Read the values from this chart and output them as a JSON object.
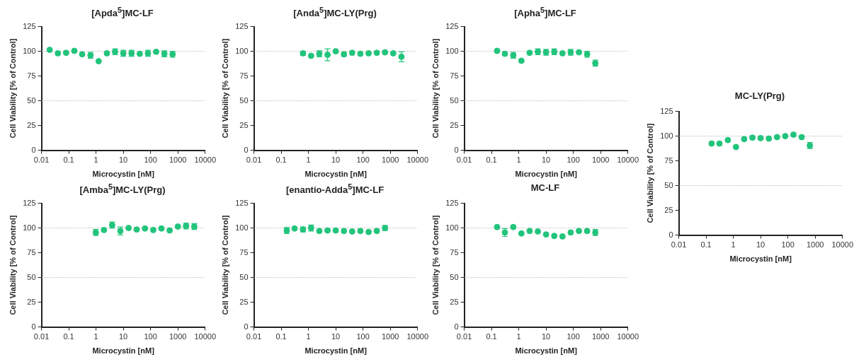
{
  "chart_data": [
    {
      "type": "scatter",
      "title": "[Apda$^{5}$]MC-LF",
      "xlabel": "Microcystin [nM]",
      "ylabel": "Cell Viability [% of Control]",
      "color": "#22c47c",
      "marker": "circle",
      "log": "x",
      "xlim": [
        0.01,
        10000
      ],
      "xticks": [
        0.01,
        0.1,
        1,
        10,
        100,
        1000,
        10000
      ],
      "ylim": [
        0,
        125
      ],
      "yticks": [
        0,
        25,
        50,
        75,
        100,
        125
      ],
      "ref_lines": [
        {
          "axis": "y",
          "value": 50,
          "line_style": "dotted",
          "color": "#999999"
        },
        {
          "axis": "y",
          "value": 100,
          "line_style": "dotted",
          "color": "#999999"
        }
      ],
      "x": [
        0.02,
        0.04,
        0.08,
        0.16,
        0.31,
        0.63,
        1.25,
        2.5,
        5,
        10,
        20,
        40,
        80,
        160,
        320,
        640
      ],
      "values": [
        101.5,
        98,
        98.5,
        100.5,
        97,
        96,
        90,
        98,
        99.5,
        98,
        98,
        97.5,
        98,
        99.5,
        97.5,
        97
      ],
      "errors": [
        null,
        null,
        null,
        null,
        null,
        3,
        null,
        null,
        3,
        3,
        3,
        null,
        3,
        null,
        3,
        3
      ]
    },
    {
      "type": "scatter",
      "title": "[Anda$^{5}$]MC-LY(Prg)",
      "xlabel": "Microcystin [nM]",
      "ylabel": "Cell Viability [% of Control]",
      "color": "#22c47c",
      "marker": "circle",
      "log": "x",
      "xlim": [
        0.01,
        10000
      ],
      "xticks": [
        0.01,
        0.1,
        1,
        10,
        100,
        1000,
        10000
      ],
      "ylim": [
        0,
        125
      ],
      "yticks": [
        0,
        25,
        50,
        75,
        100,
        125
      ],
      "ref_lines": [
        {
          "axis": "y",
          "value": 50,
          "line_style": "dotted",
          "color": "#999999"
        },
        {
          "axis": "y",
          "value": 100,
          "line_style": "dotted",
          "color": "#999999"
        }
      ],
      "x": [
        0.63,
        1.25,
        2.5,
        5,
        10,
        20,
        40,
        80,
        160,
        320,
        640,
        1280,
        2560
      ],
      "values": [
        98,
        95.5,
        97.5,
        96.5,
        100,
        97,
        98.5,
        97.5,
        98,
        98.5,
        99,
        98,
        94.5
      ],
      "errors": [
        2,
        null,
        3,
        6,
        null,
        2,
        null,
        null,
        null,
        null,
        null,
        null,
        5
      ]
    },
    {
      "type": "scatter",
      "title": "[Apha$^{5}$]MC-LF",
      "xlabel": "Microcystin [nM]",
      "ylabel": "Cell Viability [% of Control]",
      "color": "#22c47c",
      "marker": "circle",
      "log": "x",
      "xlim": [
        0.01,
        10000
      ],
      "xticks": [
        0.01,
        0.1,
        1,
        10,
        100,
        1000,
        10000
      ],
      "ylim": [
        0,
        125
      ],
      "yticks": [
        0,
        25,
        50,
        75,
        100,
        125
      ],
      "ref_lines": [
        {
          "axis": "y",
          "value": 50,
          "line_style": "dotted",
          "color": "#999999"
        },
        {
          "axis": "y",
          "value": 100,
          "line_style": "dotted",
          "color": "#999999"
        }
      ],
      "x": [
        0.16,
        0.31,
        0.63,
        1.25,
        2.5,
        5,
        10,
        20,
        40,
        80,
        160,
        320,
        640
      ],
      "values": [
        100.5,
        97.5,
        96,
        90.5,
        98.5,
        99.5,
        99,
        99.5,
        98,
        99,
        99,
        97,
        88
      ],
      "errors": [
        null,
        null,
        3,
        null,
        null,
        3,
        3,
        3,
        null,
        3,
        null,
        3,
        3
      ]
    },
    {
      "type": "scatter",
      "title": "MC-LY(Prg)",
      "xlabel": "Microcystin [nM]",
      "ylabel": "Cell Viability [% of Control]",
      "color": "#22c47c",
      "marker": "circle",
      "log": "x",
      "xlim": [
        0.01,
        10000
      ],
      "xticks": [
        0.01,
        0.1,
        1,
        10,
        100,
        1000,
        10000
      ],
      "ylim": [
        0,
        125
      ],
      "yticks": [
        0,
        25,
        50,
        75,
        100,
        125
      ],
      "ref_lines": [
        {
          "axis": "y",
          "value": 50,
          "line_style": "dotted",
          "color": "#999999"
        },
        {
          "axis": "y",
          "value": 100,
          "line_style": "dotted",
          "color": "#999999"
        }
      ],
      "x": [
        0.16,
        0.31,
        0.63,
        1.25,
        2.5,
        5,
        10,
        20,
        40,
        80,
        160,
        320,
        640
      ],
      "values": [
        92.5,
        92.5,
        96,
        89,
        97,
        98.5,
        98,
        97.5,
        99,
        100,
        101.5,
        99,
        90.5
      ],
      "errors": [
        null,
        null,
        null,
        null,
        null,
        null,
        null,
        null,
        null,
        null,
        null,
        null,
        3
      ]
    },
    {
      "type": "scatter",
      "title": "[Amba$^{5}$]MC-LY(Prg)",
      "xlabel": "Microcystin [nM]",
      "ylabel": "Cell Viability [% of Control]",
      "color": "#22c47c",
      "marker": "circle",
      "log": "x",
      "xlim": [
        0.01,
        10000
      ],
      "xticks": [
        0.01,
        0.1,
        1,
        10,
        100,
        1000,
        10000
      ],
      "ylim": [
        0,
        125
      ],
      "yticks": [
        0,
        25,
        50,
        75,
        100,
        125
      ],
      "ref_lines": [
        {
          "axis": "y",
          "value": 50,
          "line_style": "dotted",
          "color": "#999999"
        },
        {
          "axis": "y",
          "value": 100,
          "line_style": "dotted",
          "color": "#999999"
        }
      ],
      "x": [
        0.98,
        1.95,
        3.9,
        7.8,
        15.6,
        31,
        62.5,
        125,
        250,
        500,
        1000,
        2000,
        4000
      ],
      "values": [
        95.5,
        98,
        103,
        97,
        100,
        98.5,
        99.5,
        98,
        99.5,
        97.5,
        101.5,
        102,
        101.5
      ],
      "errors": [
        3,
        null,
        3,
        4,
        null,
        null,
        null,
        null,
        null,
        null,
        null,
        3,
        3
      ]
    },
    {
      "type": "scatter",
      "title": "[enantio-Adda$^{5}$]MC-LF",
      "xlabel": "Microcystin [nM]",
      "ylabel": "Cell Viability [% of Control]",
      "color": "#22c47c",
      "marker": "circle",
      "log": "x",
      "xlim": [
        0.01,
        10000
      ],
      "xticks": [
        0.01,
        0.1,
        1,
        10,
        100,
        1000,
        10000
      ],
      "ylim": [
        0,
        125
      ],
      "yticks": [
        0,
        25,
        50,
        75,
        100,
        125
      ],
      "ref_lines": [
        {
          "axis": "y",
          "value": 50,
          "line_style": "dotted",
          "color": "#999999"
        },
        {
          "axis": "y",
          "value": 100,
          "line_style": "dotted",
          "color": "#999999"
        }
      ],
      "x": [
        0.16,
        0.31,
        0.63,
        1.25,
        2.5,
        5,
        10,
        20,
        40,
        80,
        160,
        320,
        640
      ],
      "values": [
        97.5,
        99.5,
        98.5,
        100,
        97,
        97.5,
        97.5,
        97,
        96.5,
        97,
        96,
        97,
        100
      ],
      "errors": [
        3,
        null,
        2.5,
        3,
        null,
        null,
        null,
        null,
        null,
        null,
        null,
        null,
        2.5
      ]
    },
    {
      "type": "scatter",
      "title": "MC-LF",
      "xlabel": "Microcystin [nM]",
      "ylabel": "Cell Viability [% of Control]",
      "color": "#22c47c",
      "marker": "circle",
      "log": "x",
      "xlim": [
        0.01,
        10000
      ],
      "xticks": [
        0.01,
        0.1,
        1,
        10,
        100,
        1000,
        10000
      ],
      "ylim": [
        0,
        125
      ],
      "yticks": [
        0,
        25,
        50,
        75,
        100,
        125
      ],
      "ref_lines": [
        {
          "axis": "y",
          "value": 50,
          "line_style": "dotted",
          "color": "#999999"
        },
        {
          "axis": "y",
          "value": 100,
          "line_style": "dotted",
          "color": "#999999"
        }
      ],
      "x": [
        0.16,
        0.31,
        0.63,
        1.25,
        2.5,
        5,
        10,
        20,
        40,
        80,
        160,
        320,
        640
      ],
      "values": [
        101,
        95.5,
        101,
        94.5,
        97,
        96.5,
        93.5,
        92,
        91.5,
        95.5,
        97,
        97,
        95.5
      ],
      "errors": [
        null,
        4,
        null,
        null,
        null,
        null,
        null,
        null,
        null,
        null,
        null,
        null,
        3
      ]
    }
  ]
}
